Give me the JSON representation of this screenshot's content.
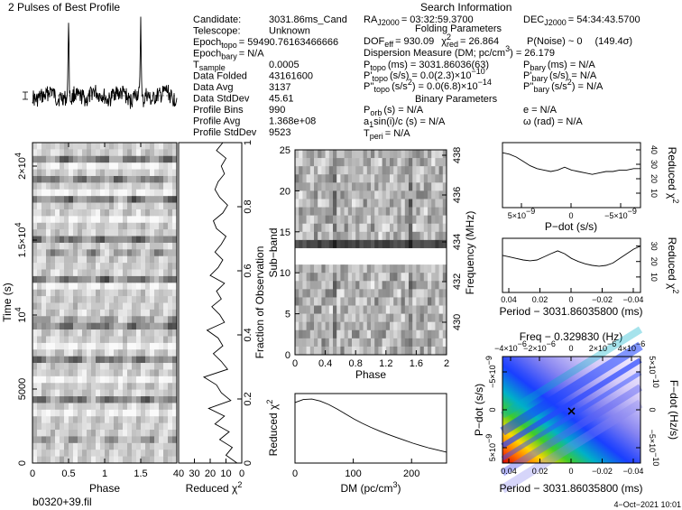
{
  "header": {
    "profile_title": "2 Pulses of Best Profile",
    "search_title": "Search Information",
    "folding_title": "Folding Parameters",
    "binary_title": "Binary Parameters"
  },
  "candidate_info": [
    {
      "label": "Candidate:",
      "value": "3031.86ms_Cand"
    },
    {
      "label": "Telescope:",
      "value": "Unknown"
    },
    {
      "label": "Epoch",
      "sub": "topo",
      "value": "= 59490.76163466666"
    },
    {
      "label": "Epoch",
      "sub": "bary",
      "value": "= N/A"
    },
    {
      "label": "T",
      "sub": "sample",
      "value": "0.0005"
    },
    {
      "label": "Data Folded",
      "value": "43161600"
    },
    {
      "label": "Data Avg",
      "value": "3137"
    },
    {
      "label": "Data StdDev",
      "value": "45.61"
    },
    {
      "label": "Profile Bins",
      "value": "990"
    },
    {
      "label": "Profile Avg",
      "value": "1.368e+08"
    },
    {
      "label": "Profile StdDev",
      "value": "9523"
    }
  ],
  "search_info": {
    "ra": "RA",
    "ra_sub": "J2000",
    "ra_value": "= 03:32:59.3700",
    "dec": "DEC",
    "dec_sub": "J2000",
    "dec_value": "= 54:34:43.5700",
    "dof": "DOF",
    "dof_sub": "eff",
    "dof_value": "= 930.09",
    "chi": "χ",
    "chi_sup": "2",
    "chi_sub": "red",
    "chi_value": "= 26.864",
    "pnoise": "P(Noise) ~ 0",
    "sigma": "(149.4σ)",
    "dm_line": "Dispersion Measure (DM; pc/cm",
    "dm_sup": "3",
    "dm_value": ") = 26.179",
    "p_topo_a": "P",
    "p_topo_sub": "topo",
    "p_topo_value": "(ms) = 3031.86036(63)",
    "pd_topo_a": "P'",
    "pd_topo_sub": "topo",
    "pd_topo_value": "(s/s) = 0.0(2.3)×10",
    "pd_topo_exp": "−10",
    "pdd_topo_a": "P''",
    "pdd_topo_sub": "topo",
    "pdd_topo_value": "(s/s",
    "pdd_topo_sup": "2",
    "pdd_topo_value2": ") = 0.0(6.8)×10",
    "pdd_topo_exp": "−14",
    "p_bary_a": "P",
    "p_bary_sub": "bary",
    "p_bary_value": "(ms) = N/A",
    "pd_bary_a": "P'",
    "pd_bary_sub": "bary",
    "pd_bary_value": "(s/s) = N/A",
    "pdd_bary_a": "P''",
    "pdd_bary_sub": "bary",
    "pdd_bary_value": "(s/s",
    "pdd_bary_sup": "2",
    "pdd_bary_value2": ") = N/A",
    "porb_a": "P",
    "porb_sub": "orb",
    "porb_value": "(s) = N/A",
    "asini_a": "a",
    "asini_sub": "1",
    "asini_value": "sin(i)/c (s) = N/A",
    "tperi_a": "T",
    "tperi_sub": "peri",
    "tperi_value": "= N/A",
    "e_value": "e = N/A",
    "omega_value": "ω (rad) = N/A"
  },
  "footer": {
    "filename": "b0320+39.fil",
    "date": "4−Oct−2021  10:01"
  },
  "chart_data": [
    {
      "type": "line",
      "title": "2 Pulses of Best Profile",
      "xlabel": "",
      "ylabel": "",
      "x_range": [
        0,
        2
      ],
      "pulse_phases": [
        0.5,
        1.5
      ]
    },
    {
      "type": "heatmap",
      "xlabel": "Phase",
      "ylabel": "Time (s)",
      "xlim": [
        0,
        2
      ],
      "ylim": [
        0,
        21580
      ],
      "x_ticks": [
        "0",
        "0.5",
        "1",
        "1.5"
      ],
      "y_ticks": [
        "0",
        "5000",
        "10",
        "1.5×10",
        "2×10"
      ],
      "y_tick_exp": "4"
    },
    {
      "type": "line",
      "xlabel": "Reduced χ",
      "xlabel_sup": "2",
      "ylabel": "Fraction of Observation",
      "x_ticks": [
        "40",
        "30",
        "20",
        "10",
        "0"
      ],
      "y_ticks": [
        "0",
        "0.2",
        "0.4",
        "0.6",
        "0.8",
        "1"
      ],
      "xlim": [
        40,
        0
      ],
      "ylim": [
        0,
        1
      ],
      "values": [
        3,
        10,
        6,
        14,
        8,
        17,
        11,
        21,
        7,
        13,
        16,
        24,
        9,
        13,
        18,
        12,
        15,
        22,
        11,
        14,
        19,
        13,
        16,
        11,
        20,
        15,
        12,
        17,
        13,
        10,
        16,
        18,
        12,
        9,
        14,
        17,
        15,
        11,
        13,
        10,
        16,
        12
      ]
    },
    {
      "type": "heatmap",
      "xlabel": "Phase",
      "ylabel": "Sub−band",
      "ylabel_right": "Frequency (MHz)",
      "x_ticks": [
        "0",
        "0.4",
        "0.8",
        "1.2",
        "1.6",
        "2"
      ],
      "y_ticks": [
        "0",
        "5",
        "10",
        "15",
        "20",
        "25"
      ],
      "freq_ticks": [
        "430",
        "432",
        "434",
        "436",
        "438"
      ],
      "xlim": [
        0,
        2
      ],
      "ylim": [
        0,
        25
      ]
    },
    {
      "type": "line",
      "xlabel": "DM (pc/cm",
      "xlabel_sup": "3",
      "xlabel_end": ")",
      "ylabel": "Reduced χ",
      "ylabel_sup": "2",
      "x_ticks": [
        "0",
        "100",
        "200"
      ],
      "xlim": [
        0,
        260
      ],
      "values": [
        26.2,
        26.8,
        26.9,
        26.5,
        25.8,
        24.9,
        23.9,
        22.9,
        22.0,
        21.2,
        20.5,
        19.8,
        19.2,
        18.6,
        18.0,
        17.5,
        17.0,
        16.6,
        16.2
      ]
    },
    {
      "type": "line",
      "xlabel": "P−dot (s/s)",
      "ylabel": "Reduced χ",
      "ylabel_sup": "2",
      "x_ticks": [
        "5×10",
        "0",
        "−5×10"
      ],
      "x_tick_exp": "−9",
      "y_ticks": [
        "10",
        "20",
        "30",
        "40"
      ],
      "ylim": [
        0,
        45
      ],
      "values": [
        38,
        37,
        35,
        32,
        29,
        27,
        26,
        25,
        26,
        28,
        26,
        25,
        24,
        23,
        24,
        25,
        25,
        26,
        26,
        27,
        27
      ]
    },
    {
      "type": "line",
      "xlabel": "Period − 3031.86035800 (ms)",
      "ylabel": "Reduced χ",
      "ylabel_sup": "2",
      "x_ticks": [
        "0.04",
        "0.02",
        "0",
        "−0.02",
        "−0.04"
      ],
      "y_ticks": [
        "10",
        "20",
        "30"
      ],
      "ylim": [
        0,
        35
      ],
      "values": [
        24,
        23,
        22,
        21,
        20.5,
        21,
        23,
        25,
        26.9,
        25,
        22,
        20,
        18.5,
        17.5,
        17,
        17.5,
        19,
        22,
        25,
        28,
        30
      ]
    },
    {
      "type": "heatmap",
      "title": "Freq − 0.329830 (Hz)",
      "xlabel": "Period − 3031.86035800 (ms)",
      "ylabel": "P−dot (s/s)",
      "ylabel_right": "F−dot (Hz/s)",
      "x_ticks": [
        "0.04",
        "0.02",
        "0",
        "−0.02",
        "−0.04"
      ],
      "top_ticks": [
        "−4×10",
        "−2×10",
        "0",
        "2×10",
        "4×10"
      ],
      "top_tick_exp": "−6",
      "y_ticks": [
        "5×10",
        "0",
        "−5×10"
      ],
      "y_tick_exp": "−9",
      "right_ticks": [
        "5×10",
        "0",
        "−5×10"
      ],
      "right_tick_exp": "−10"
    }
  ]
}
